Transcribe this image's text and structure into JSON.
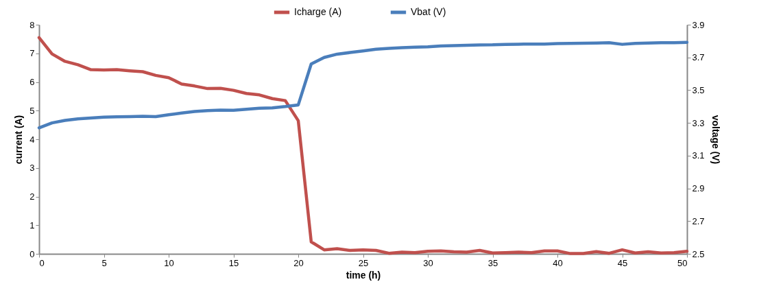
{
  "chart_data": {
    "type": "line",
    "xlabel": "time (h)",
    "ylabel": "current (A)",
    "y2label": "voltage (V)",
    "x": [
      0,
      1,
      2,
      3,
      4,
      5,
      6,
      7,
      8,
      9,
      10,
      11,
      12,
      13,
      14,
      15,
      16,
      17,
      18,
      19,
      20,
      21,
      22,
      23,
      24,
      25,
      26,
      27,
      28,
      29,
      30,
      31,
      32,
      33,
      34,
      35,
      36,
      37,
      38,
      39,
      40,
      41,
      42,
      43,
      44,
      45,
      46,
      47,
      48,
      49,
      50
    ],
    "xlim": [
      0,
      50
    ],
    "xticks": [
      0,
      5,
      10,
      15,
      20,
      25,
      30,
      35,
      40,
      45,
      50
    ],
    "ylim": [
      0,
      8
    ],
    "yticks": [
      0,
      1,
      2,
      3,
      4,
      5,
      6,
      7,
      8
    ],
    "y2lim": [
      2.5,
      3.9
    ],
    "y2ticks": [
      2.5,
      2.7,
      2.9,
      3.1,
      3.3,
      3.5,
      3.7,
      3.9
    ],
    "grid": false,
    "legend": "top",
    "marker": "none",
    "line_style": "solid",
    "series": [
      {
        "name": "Icharge (A)",
        "color": "#c0504d",
        "values": [
          7.55,
          6.98,
          6.72,
          6.6,
          6.43,
          6.42,
          6.43,
          6.39,
          6.36,
          6.23,
          6.15,
          5.93,
          5.86,
          5.77,
          5.78,
          5.71,
          5.6,
          5.55,
          5.42,
          5.35,
          4.65,
          0.42,
          0.14,
          0.18,
          0.12,
          0.14,
          0.12,
          0.02,
          0.06,
          0.04,
          0.09,
          0.1,
          0.07,
          0.06,
          0.12,
          0.03,
          0.04,
          0.06,
          0.04,
          0.1,
          0.1,
          0.01,
          0.01,
          0.08,
          0.02,
          0.14,
          0.03,
          0.07,
          0.03,
          0.04,
          0.09
        ]
      },
      {
        "name": "Vbat (V)",
        "color": "#4a7ebb",
        "axis": "y2",
        "values": [
          3.27,
          3.3,
          3.315,
          3.325,
          3.33,
          3.335,
          3.337,
          3.338,
          3.34,
          3.338,
          3.35,
          3.36,
          3.37,
          3.375,
          3.378,
          3.377,
          3.383,
          3.39,
          3.392,
          3.4,
          3.41,
          3.66,
          3.7,
          3.72,
          3.73,
          3.74,
          3.75,
          3.755,
          3.76,
          3.763,
          3.765,
          3.77,
          3.772,
          3.774,
          3.776,
          3.777,
          3.78,
          3.781,
          3.782,
          3.782,
          3.785,
          3.786,
          3.787,
          3.788,
          3.79,
          3.78,
          3.786,
          3.788,
          3.79,
          3.79,
          3.792
        ]
      }
    ]
  }
}
